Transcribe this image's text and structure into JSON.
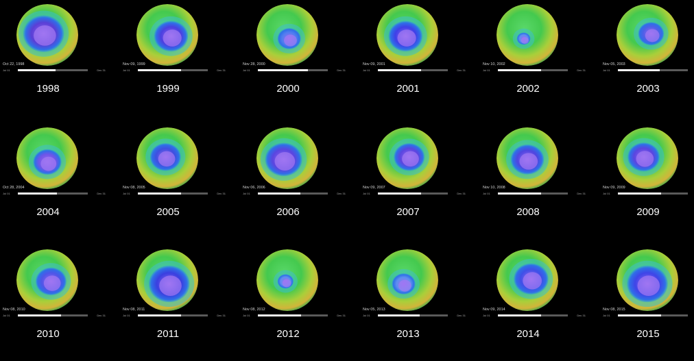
{
  "panels": [
    {
      "year": "1998",
      "date": "Oct 22, 1998",
      "start": "Jul 01",
      "end": "Dec 31",
      "progress": 0.54,
      "hole_size": 0.66,
      "hole_color": "#5a3fd6"
    },
    {
      "year": "1999",
      "date": "Nov 09, 1999",
      "start": "Jul 01",
      "end": "Dec 31",
      "progress": 0.62,
      "hole_size": 0.55,
      "hole_color": "#4b3fe0"
    },
    {
      "year": "2000",
      "date": "Nov 28, 2000",
      "start": "Jul 01",
      "end": "Dec 31",
      "progress": 0.72,
      "hole_size": 0.38,
      "hole_color": "#4f7ef0"
    },
    {
      "year": "2001",
      "date": "Nov 09, 2001",
      "start": "Jul 01",
      "end": "Dec 31",
      "progress": 0.62,
      "hole_size": 0.55,
      "hole_color": "#3f3fe8"
    },
    {
      "year": "2002",
      "date": "Nov 10, 2002",
      "start": "Jul 01",
      "end": "Dec 31",
      "progress": 0.62,
      "hole_size": 0.22,
      "hole_color": "#5f8ff0"
    },
    {
      "year": "2003",
      "date": "Nov 05, 2003",
      "start": "Jul 01",
      "end": "Dec 31",
      "progress": 0.6,
      "hole_size": 0.42,
      "hole_color": "#4f5fe8"
    },
    {
      "year": "2004",
      "date": "Oct 28, 2004",
      "start": "Jul 01",
      "end": "Dec 31",
      "progress": 0.56,
      "hole_size": 0.46,
      "hole_color": "#6f55e8"
    },
    {
      "year": "2005",
      "date": "Nov 08, 2005",
      "start": "Jul 01",
      "end": "Dec 31",
      "progress": 0.62,
      "hole_size": 0.5,
      "hole_color": "#3f4fe0"
    },
    {
      "year": "2006",
      "date": "Nov 06, 2006",
      "start": "Jul 01",
      "end": "Dec 31",
      "progress": 0.61,
      "hole_size": 0.6,
      "hole_color": "#5a45e0"
    },
    {
      "year": "2007",
      "date": "Nov 09, 2007",
      "start": "Jul 01",
      "end": "Dec 31",
      "progress": 0.62,
      "hole_size": 0.5,
      "hole_color": "#5a45e0"
    },
    {
      "year": "2008",
      "date": "Nov 10, 2008",
      "start": "Jul 01",
      "end": "Dec 31",
      "progress": 0.62,
      "hole_size": 0.54,
      "hole_color": "#4f45e0"
    },
    {
      "year": "2009",
      "date": "Nov 09, 2009",
      "start": "Jul 01",
      "end": "Dec 31",
      "progress": 0.62,
      "hole_size": 0.52,
      "hole_color": "#5a45e0"
    },
    {
      "year": "2010",
      "date": "Nov 08, 2010",
      "start": "Jul 01",
      "end": "Dec 31",
      "progress": 0.62,
      "hole_size": 0.5,
      "hole_color": "#4f55e8"
    },
    {
      "year": "2011",
      "date": "Nov 08, 2011",
      "start": "Jul 01",
      "end": "Dec 31",
      "progress": 0.62,
      "hole_size": 0.66,
      "hole_color": "#3a3fe0"
    },
    {
      "year": "2012",
      "date": "Nov 08, 2012",
      "start": "Jul 01",
      "end": "Dec 31",
      "progress": 0.62,
      "hole_size": 0.26,
      "hole_color": "#5f8ff0"
    },
    {
      "year": "2013",
      "date": "Nov 05, 2013",
      "start": "Jul 01",
      "end": "Dec 31",
      "progress": 0.6,
      "hole_size": 0.38,
      "hole_color": "#5f8ff0"
    },
    {
      "year": "2014",
      "date": "Nov 09, 2014",
      "start": "Jul 01",
      "end": "Dec 31",
      "progress": 0.62,
      "hole_size": 0.56,
      "hole_color": "#3f4fe8"
    },
    {
      "year": "2015",
      "date": "Nov 08, 2015",
      "start": "Jul 01",
      "end": "Dec 31",
      "progress": 0.62,
      "hole_size": 0.66,
      "hole_color": "#3f45e8"
    }
  ]
}
